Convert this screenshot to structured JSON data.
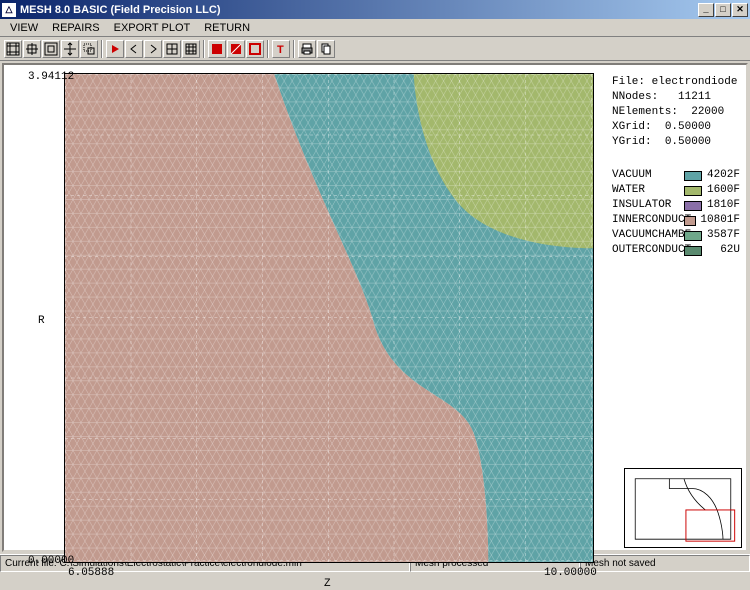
{
  "window": {
    "title": "MESH 8.0 BASIC (Field Precision LLC)",
    "icon_glyph": "△",
    "min": "_",
    "max": "□",
    "close": "✕"
  },
  "menu": {
    "items": [
      "VIEW",
      "REPAIRS",
      "EXPORT PLOT",
      "RETURN"
    ]
  },
  "plot": {
    "y_axis_label": "R",
    "x_axis_label": "Z",
    "y_max": "3.94112",
    "y_min": "0.00000",
    "x_min": "6.05888",
    "x_max": "10.00000",
    "grid_color": "#f0f0f0",
    "colors": {
      "vacuum": "#5fa3a6",
      "water": "#a3b86c",
      "insulator": "#8a6fa8",
      "innerconduct": "#c19a8e",
      "vacuumchambe": "#6fa88a",
      "outerconduct": "#5a8a6f"
    }
  },
  "info": {
    "file_label": "File:",
    "file_value": "electrondiode",
    "nnodes_label": "NNodes:",
    "nnodes_value": "11211",
    "nelem_label": "NElements:",
    "nelem_value": "22000",
    "xgrid_label": "XGrid:",
    "xgrid_value": "0.50000",
    "ygrid_label": "YGrid:",
    "ygrid_value": "0.50000"
  },
  "legend": {
    "items": [
      {
        "label": "VACUUM",
        "color": "#5fa3a6",
        "count": "4202F"
      },
      {
        "label": "WATER",
        "color": "#a3b86c",
        "count": "1600F"
      },
      {
        "label": "INSULATOR",
        "color": "#8a6fa8",
        "count": "1810F"
      },
      {
        "label": "INNERCONDUCT",
        "color": "#c19a8e",
        "count": "10801F"
      },
      {
        "label": "VACUUMCHAMBE",
        "color": "#6fa88a",
        "count": "3587F"
      },
      {
        "label": "OUTERCONDUCT",
        "color": "#5a8a6f",
        "count": "62U"
      }
    ]
  },
  "status": {
    "left": "Current file: C:\\Simulations\\Electrostatic\\Practice\\electrondiode.min",
    "mid": "Mesh processed",
    "right": "Mesh not saved"
  }
}
